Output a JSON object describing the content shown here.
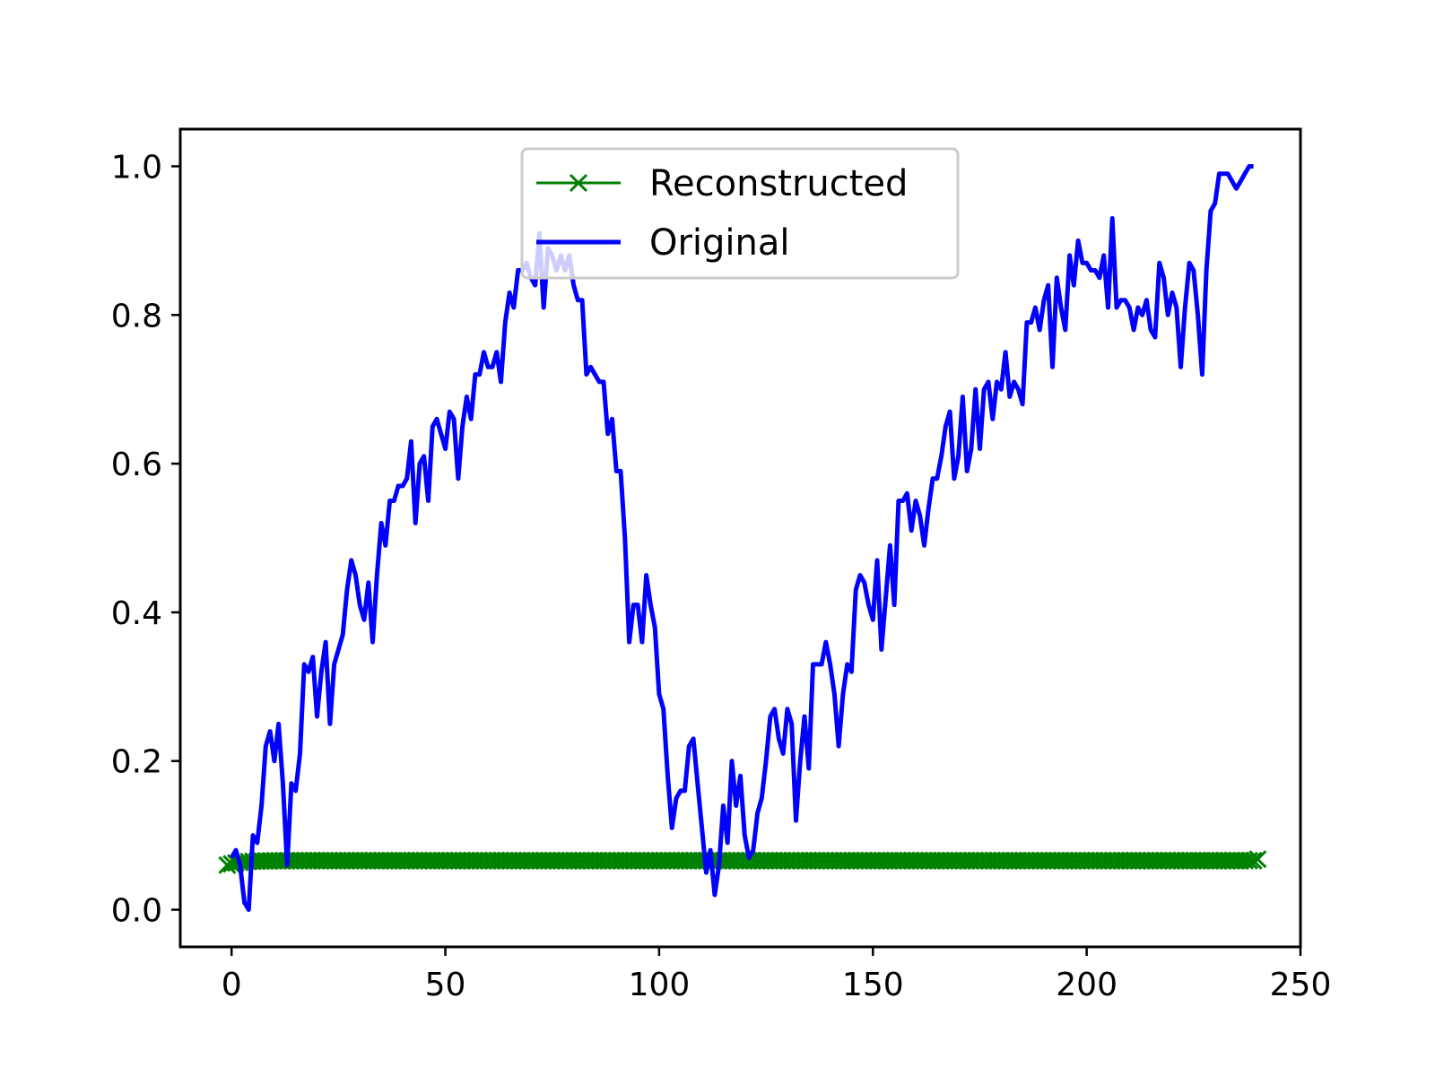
{
  "chart_data": {
    "type": "line",
    "title": "",
    "xlabel": "",
    "ylabel": "",
    "xlim": [
      -12,
      250
    ],
    "ylim": [
      -0.05,
      1.05
    ],
    "xticks": [
      0,
      50,
      100,
      150,
      200,
      250
    ],
    "yticks": [
      0.0,
      0.2,
      0.4,
      0.6,
      0.8,
      1.0
    ],
    "xtick_labels": [
      "0",
      "50",
      "100",
      "150",
      "200",
      "250"
    ],
    "ytick_labels": [
      "0.0",
      "0.2",
      "0.4",
      "0.6",
      "0.8",
      "1.0"
    ],
    "grid": false,
    "legend": {
      "position": "upper-center"
    },
    "series": [
      {
        "name": "Reconstructed",
        "color": "#008000",
        "marker": "x",
        "x_start": -1,
        "x_end": 240,
        "values_start": 0.06,
        "values_end": 0.068,
        "values_settle": 0.066
      },
      {
        "name": "Original",
        "color": "#0000ff",
        "marker": "none",
        "points": [
          [
            0,
            0.07
          ],
          [
            1,
            0.08
          ],
          [
            2,
            0.06
          ],
          [
            3,
            0.01
          ],
          [
            4,
            0.0
          ],
          [
            5,
            0.1
          ],
          [
            6,
            0.09
          ],
          [
            7,
            0.14
          ],
          [
            8,
            0.22
          ],
          [
            9,
            0.24
          ],
          [
            10,
            0.2
          ],
          [
            11,
            0.25
          ],
          [
            12,
            0.17
          ],
          [
            13,
            0.06
          ],
          [
            14,
            0.17
          ],
          [
            15,
            0.16
          ],
          [
            16,
            0.21
          ],
          [
            17,
            0.33
          ],
          [
            18,
            0.32
          ],
          [
            19,
            0.34
          ],
          [
            20,
            0.26
          ],
          [
            21,
            0.32
          ],
          [
            22,
            0.36
          ],
          [
            23,
            0.25
          ],
          [
            24,
            0.33
          ],
          [
            25,
            0.35
          ],
          [
            26,
            0.37
          ],
          [
            27,
            0.43
          ],
          [
            28,
            0.47
          ],
          [
            29,
            0.45
          ],
          [
            30,
            0.41
          ],
          [
            31,
            0.39
          ],
          [
            32,
            0.44
          ],
          [
            33,
            0.36
          ],
          [
            34,
            0.45
          ],
          [
            35,
            0.52
          ],
          [
            36,
            0.49
          ],
          [
            37,
            0.55
          ],
          [
            38,
            0.55
          ],
          [
            39,
            0.57
          ],
          [
            40,
            0.57
          ],
          [
            41,
            0.58
          ],
          [
            42,
            0.63
          ],
          [
            43,
            0.52
          ],
          [
            44,
            0.6
          ],
          [
            45,
            0.61
          ],
          [
            46,
            0.55
          ],
          [
            47,
            0.65
          ],
          [
            48,
            0.66
          ],
          [
            49,
            0.64
          ],
          [
            50,
            0.62
          ],
          [
            51,
            0.67
          ],
          [
            52,
            0.66
          ],
          [
            53,
            0.58
          ],
          [
            54,
            0.65
          ],
          [
            55,
            0.69
          ],
          [
            56,
            0.66
          ],
          [
            57,
            0.72
          ],
          [
            58,
            0.72
          ],
          [
            59,
            0.75
          ],
          [
            60,
            0.73
          ],
          [
            61,
            0.73
          ],
          [
            62,
            0.75
          ],
          [
            63,
            0.71
          ],
          [
            64,
            0.79
          ],
          [
            65,
            0.83
          ],
          [
            66,
            0.81
          ],
          [
            67,
            0.86
          ],
          [
            68,
            0.86
          ],
          [
            69,
            0.87
          ],
          [
            70,
            0.85
          ],
          [
            71,
            0.84
          ],
          [
            72,
            0.91
          ],
          [
            73,
            0.81
          ],
          [
            74,
            0.89
          ],
          [
            75,
            0.88
          ],
          [
            76,
            0.86
          ],
          [
            77,
            0.88
          ],
          [
            78,
            0.86
          ],
          [
            79,
            0.88
          ],
          [
            80,
            0.84
          ],
          [
            81,
            0.82
          ],
          [
            82,
            0.82
          ],
          [
            83,
            0.72
          ],
          [
            84,
            0.73
          ],
          [
            85,
            0.72
          ],
          [
            86,
            0.71
          ],
          [
            87,
            0.71
          ],
          [
            88,
            0.64
          ],
          [
            89,
            0.66
          ],
          [
            90,
            0.59
          ],
          [
            91,
            0.59
          ],
          [
            92,
            0.5
          ],
          [
            93,
            0.36
          ],
          [
            94,
            0.41
          ],
          [
            95,
            0.41
          ],
          [
            96,
            0.36
          ],
          [
            97,
            0.45
          ],
          [
            98,
            0.41
          ],
          [
            99,
            0.38
          ],
          [
            100,
            0.29
          ],
          [
            101,
            0.27
          ],
          [
            102,
            0.18
          ],
          [
            103,
            0.11
          ],
          [
            104,
            0.15
          ],
          [
            105,
            0.16
          ],
          [
            106,
            0.16
          ],
          [
            107,
            0.22
          ],
          [
            108,
            0.23
          ],
          [
            109,
            0.17
          ],
          [
            110,
            0.11
          ],
          [
            111,
            0.05
          ],
          [
            112,
            0.08
          ],
          [
            113,
            0.02
          ],
          [
            114,
            0.06
          ],
          [
            115,
            0.14
          ],
          [
            116,
            0.09
          ],
          [
            117,
            0.2
          ],
          [
            118,
            0.14
          ],
          [
            119,
            0.18
          ],
          [
            120,
            0.1
          ],
          [
            121,
            0.07
          ],
          [
            122,
            0.08
          ],
          [
            123,
            0.13
          ],
          [
            124,
            0.15
          ],
          [
            125,
            0.2
          ],
          [
            126,
            0.26
          ],
          [
            127,
            0.27
          ],
          [
            128,
            0.23
          ],
          [
            129,
            0.21
          ],
          [
            130,
            0.27
          ],
          [
            131,
            0.25
          ],
          [
            132,
            0.12
          ],
          [
            133,
            0.2
          ],
          [
            134,
            0.26
          ],
          [
            135,
            0.19
          ],
          [
            136,
            0.33
          ],
          [
            137,
            0.33
          ],
          [
            138,
            0.33
          ],
          [
            139,
            0.36
          ],
          [
            140,
            0.33
          ],
          [
            141,
            0.29
          ],
          [
            142,
            0.22
          ],
          [
            143,
            0.29
          ],
          [
            144,
            0.33
          ],
          [
            145,
            0.32
          ],
          [
            146,
            0.43
          ],
          [
            147,
            0.45
          ],
          [
            148,
            0.44
          ],
          [
            149,
            0.41
          ],
          [
            150,
            0.39
          ],
          [
            151,
            0.47
          ],
          [
            152,
            0.35
          ],
          [
            153,
            0.42
          ],
          [
            154,
            0.49
          ],
          [
            155,
            0.41
          ],
          [
            156,
            0.55
          ],
          [
            157,
            0.55
          ],
          [
            158,
            0.56
          ],
          [
            159,
            0.51
          ],
          [
            160,
            0.55
          ],
          [
            161,
            0.53
          ],
          [
            162,
            0.49
          ],
          [
            163,
            0.54
          ],
          [
            164,
            0.58
          ],
          [
            165,
            0.58
          ],
          [
            166,
            0.61
          ],
          [
            167,
            0.65
          ],
          [
            168,
            0.67
          ],
          [
            169,
            0.58
          ],
          [
            170,
            0.61
          ],
          [
            171,
            0.69
          ],
          [
            172,
            0.59
          ],
          [
            173,
            0.62
          ],
          [
            174,
            0.7
          ],
          [
            175,
            0.62
          ],
          [
            176,
            0.7
          ],
          [
            177,
            0.71
          ],
          [
            178,
            0.66
          ],
          [
            179,
            0.71
          ],
          [
            180,
            0.7
          ],
          [
            181,
            0.75
          ],
          [
            182,
            0.69
          ],
          [
            183,
            0.71
          ],
          [
            184,
            0.7
          ],
          [
            185,
            0.68
          ],
          [
            186,
            0.79
          ],
          [
            187,
            0.79
          ],
          [
            188,
            0.81
          ],
          [
            189,
            0.78
          ],
          [
            190,
            0.82
          ],
          [
            191,
            0.84
          ],
          [
            192,
            0.73
          ],
          [
            193,
            0.85
          ],
          [
            194,
            0.81
          ],
          [
            195,
            0.78
          ],
          [
            196,
            0.88
          ],
          [
            197,
            0.84
          ],
          [
            198,
            0.9
          ],
          [
            199,
            0.87
          ],
          [
            200,
            0.87
          ],
          [
            201,
            0.86
          ],
          [
            202,
            0.86
          ],
          [
            203,
            0.85
          ],
          [
            204,
            0.88
          ],
          [
            205,
            0.81
          ],
          [
            206,
            0.93
          ],
          [
            207,
            0.81
          ],
          [
            208,
            0.82
          ],
          [
            209,
            0.82
          ],
          [
            210,
            0.81
          ],
          [
            211,
            0.78
          ],
          [
            212,
            0.81
          ],
          [
            213,
            0.8
          ],
          [
            214,
            0.82
          ],
          [
            215,
            0.78
          ],
          [
            216,
            0.77
          ],
          [
            217,
            0.87
          ],
          [
            218,
            0.85
          ],
          [
            219,
            0.8
          ],
          [
            220,
            0.83
          ],
          [
            221,
            0.81
          ],
          [
            222,
            0.73
          ],
          [
            223,
            0.81
          ],
          [
            224,
            0.87
          ],
          [
            225,
            0.86
          ],
          [
            226,
            0.8
          ],
          [
            227,
            0.72
          ],
          [
            228,
            0.86
          ],
          [
            229,
            0.94
          ],
          [
            230,
            0.95
          ],
          [
            231,
            0.99
          ],
          [
            232,
            0.99
          ],
          [
            233,
            0.99
          ],
          [
            234,
            0.98
          ],
          [
            235,
            0.97
          ],
          [
            236,
            0.98
          ],
          [
            237,
            0.99
          ],
          [
            238,
            1.0
          ],
          [
            239,
            1.0
          ]
        ]
      }
    ]
  }
}
